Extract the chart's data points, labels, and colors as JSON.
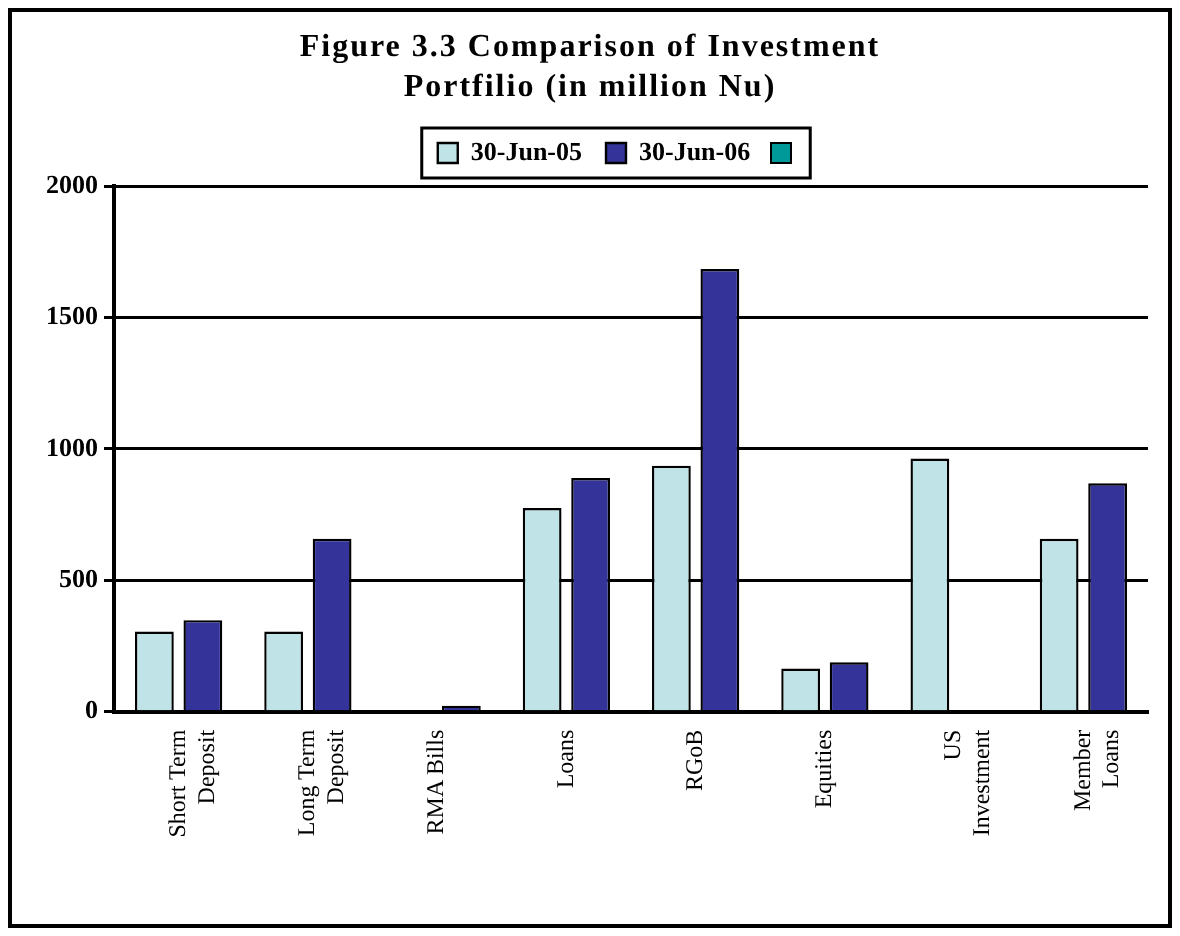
{
  "chart_data": {
    "type": "bar",
    "title": "Figure 3.3 Comparison of Investment Portfilio (in million Nu)",
    "categories": [
      "Short Term Deposit",
      "Long Term Deposit",
      "RMA Bills",
      "Loans",
      "RGoB",
      "Equities",
      "US Investment",
      "Member Loans"
    ],
    "series": [
      {
        "name": "30-Jun-05",
        "color": "#bfe3e6",
        "values": [
          305,
          305,
          null,
          775,
          936,
          164,
          963,
          658
        ]
      },
      {
        "name": "30-Jun-06",
        "color": "#333399",
        "values": [
          348,
          658,
          23,
          889,
          1684,
          188,
          null,
          869
        ]
      }
    ],
    "ylim": [
      0,
      2000
    ],
    "yticks": [
      0,
      500,
      1000,
      1500,
      2000
    ],
    "grid": "y",
    "legend": "top"
  }
}
